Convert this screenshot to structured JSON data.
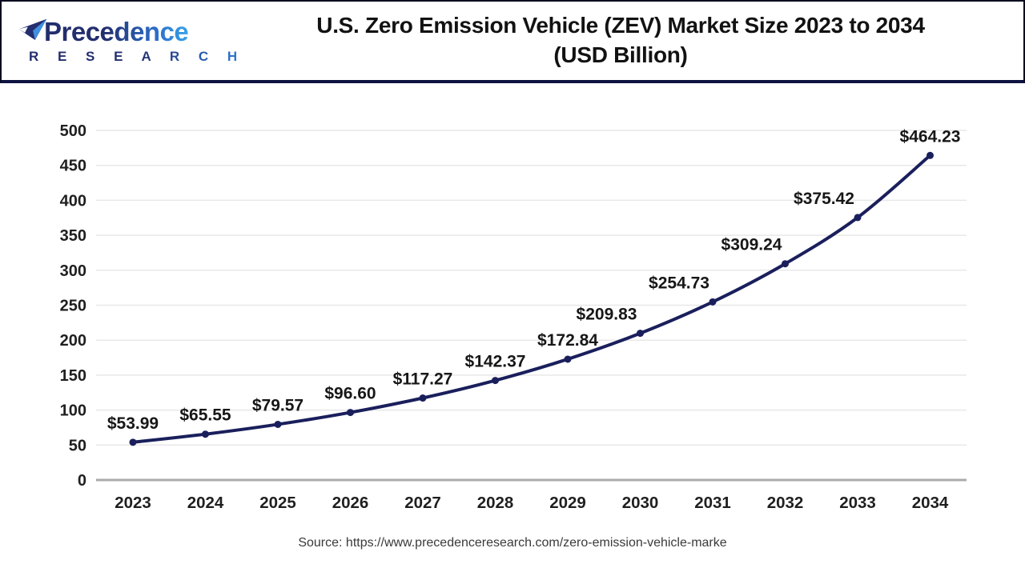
{
  "header": {
    "logo": {
      "brand": "Precedence",
      "subbrand": "R E S E A R C H",
      "brand_color_dark": "#232e6e",
      "brand_color_light": "#37a3e9"
    },
    "title_line1": "U.S. Zero Emission Vehicle (ZEV) Market Size 2023 to 2034",
    "title_line2": "(USD Billion)"
  },
  "chart_data": {
    "type": "line",
    "title": "U.S. Zero Emission Vehicle (ZEV) Market Size 2023 to 2034 (USD Billion)",
    "categories": [
      "2023",
      "2024",
      "2025",
      "2026",
      "2027",
      "2028",
      "2029",
      "2030",
      "2031",
      "2032",
      "2033",
      "2034"
    ],
    "series": [
      {
        "name": "U.S. ZEV Market Size (USD Billion)",
        "values": [
          53.99,
          65.55,
          79.57,
          96.6,
          117.27,
          142.37,
          172.84,
          209.83,
          254.73,
          309.24,
          375.42,
          464.23
        ]
      }
    ],
    "point_labels": [
      "$53.99",
      "$65.55",
      "$79.57",
      "$96.60",
      "$117.27",
      "$142.37",
      "$172.84",
      "$209.83",
      "$254.73",
      "$309.24",
      "$375.42",
      "$464.23"
    ],
    "yticks": [
      0,
      50,
      100,
      150,
      200,
      250,
      300,
      350,
      400,
      450,
      500
    ],
    "ylim": [
      0,
      500
    ],
    "xlabel": "",
    "ylabel": "",
    "grid": "horizontal-only",
    "legend": "none",
    "line_color": "#1a1f5c",
    "marker_color": "#1a1f5c",
    "data_label_color": "#171717",
    "tick_label_color": "#1f1f1f",
    "gridline_color": "#e8e8e8",
    "axis_line_color": "#ababab"
  },
  "footer": {
    "source": "Source: https://www.precedenceresearch.com/zero-emission-vehicle-marke"
  }
}
